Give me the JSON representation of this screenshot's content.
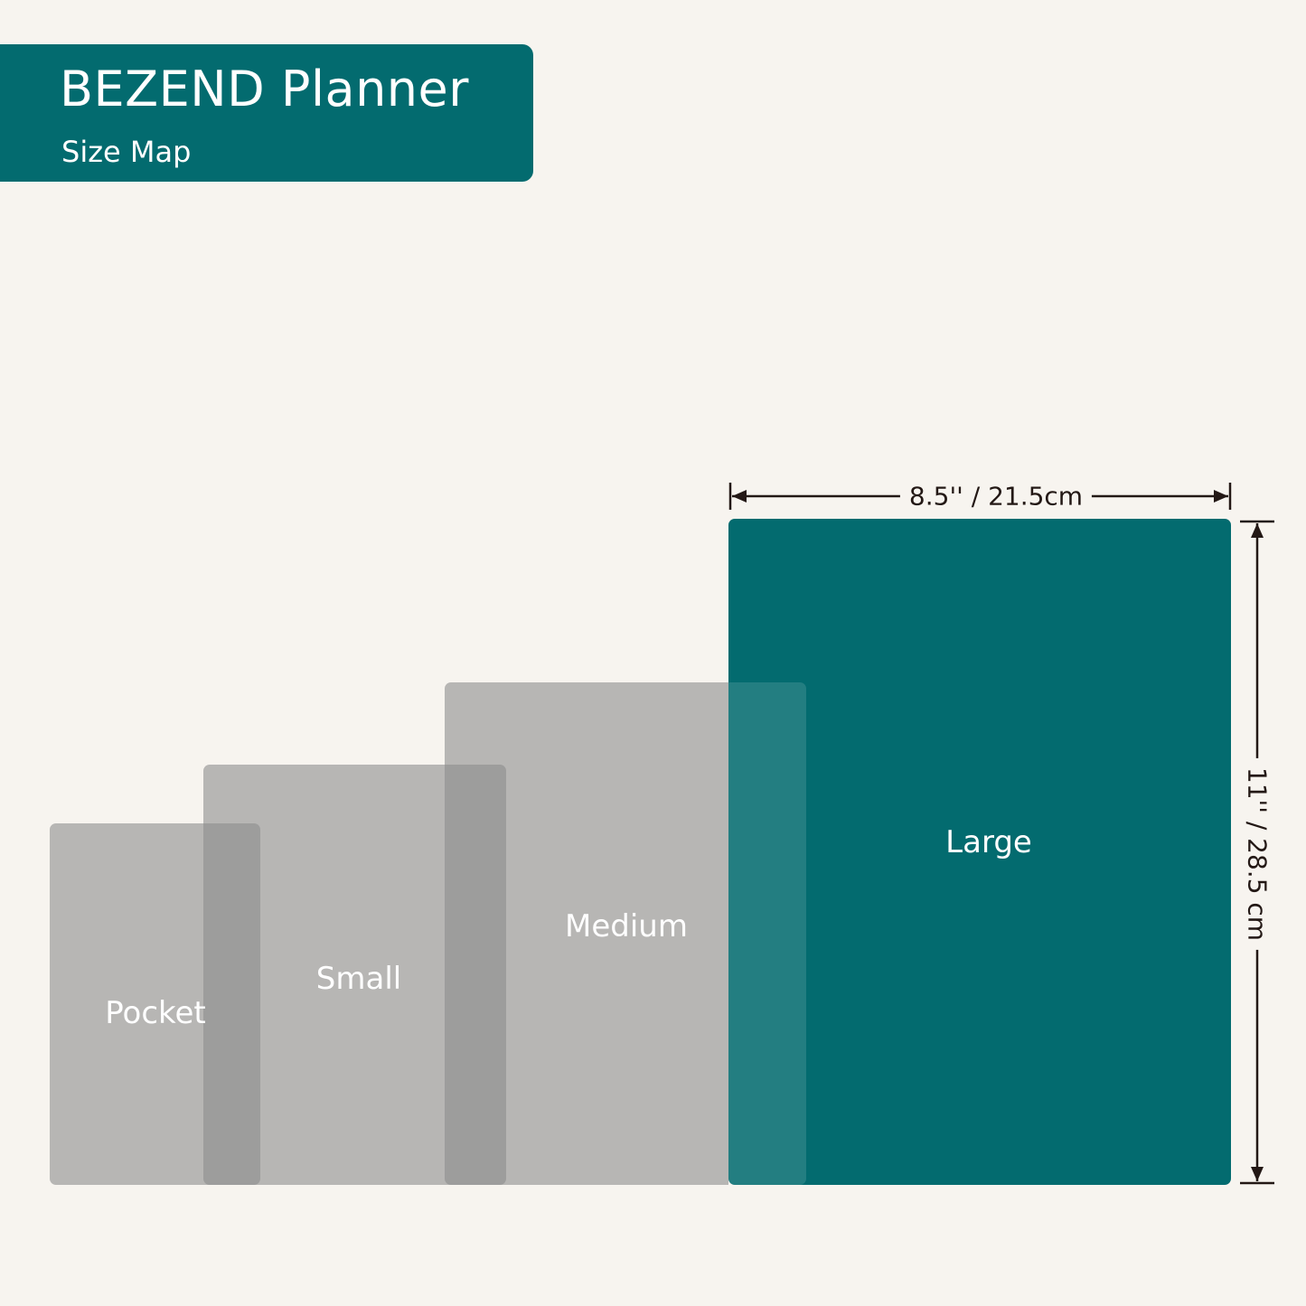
{
  "header": {
    "title": "BEZEND Planner",
    "subtitle": "Size Map"
  },
  "sizes": [
    {
      "label": "Pocket"
    },
    {
      "label": "Small"
    },
    {
      "label": "Medium"
    },
    {
      "label": "Large"
    }
  ],
  "dimensions": {
    "width": "8.5'' / 21.5cm",
    "height": "11'' / 28.5 cm"
  },
  "colors": {
    "brand": "#036b6f",
    "background": "#f7f4ef",
    "gray": "#b8b7b5",
    "arrow": "#231815"
  }
}
